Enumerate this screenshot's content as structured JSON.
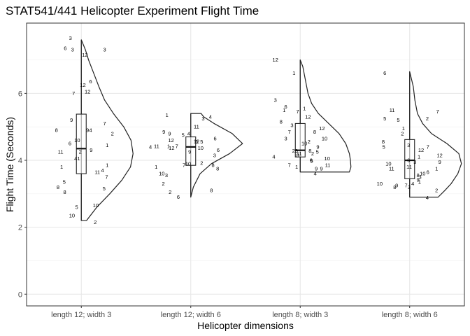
{
  "chart_data": {
    "type": "violin",
    "title": "STAT541/441 Helicopter Experiment Flight Time",
    "xlabel": "Helicopter dimensions",
    "ylabel": "Flight Time (Seconds)",
    "ylim": [
      -0.35,
      8.1
    ],
    "yticks": [
      0,
      2,
      4,
      6
    ],
    "grid": true,
    "categories": [
      "length 12; width 3",
      "length 12; width 6",
      "length 8; width 3",
      "length 8; width 6"
    ],
    "groups": [
      {
        "category": "length 12; width 3",
        "box": {
          "min": 2.2,
          "q1": 3.6,
          "median": 4.35,
          "q3": 5.38,
          "max": 7.6
        },
        "density": [
          [
            2.2,
            0.1
          ],
          [
            2.6,
            0.3
          ],
          [
            3.0,
            0.55
          ],
          [
            3.4,
            0.78
          ],
          [
            3.8,
            0.95
          ],
          [
            4.2,
            1.0
          ],
          [
            4.6,
            0.96
          ],
          [
            5.0,
            0.82
          ],
          [
            5.4,
            0.62
          ],
          [
            5.8,
            0.45
          ],
          [
            6.2,
            0.34
          ],
          [
            6.6,
            0.24
          ],
          [
            7.0,
            0.14
          ],
          [
            7.3,
            0.08
          ],
          [
            7.6,
            0.0
          ]
        ],
        "points": [
          {
            "label": "3",
            "dx": -0.21,
            "y": 7.65
          },
          {
            "label": "6",
            "dx": -0.31,
            "y": 7.35
          },
          {
            "label": "3",
            "dx": -0.17,
            "y": 7.3
          },
          {
            "label": "12",
            "dx": 0.07,
            "y": 7.15
          },
          {
            "label": "3",
            "dx": 0.45,
            "y": 7.3
          },
          {
            "label": "12",
            "dx": 0.03,
            "y": 6.25
          },
          {
            "label": "6",
            "dx": 0.18,
            "y": 6.35
          },
          {
            "label": "7",
            "dx": -0.15,
            "y": 6.0
          },
          {
            "label": "12",
            "dx": 0.12,
            "y": 6.05
          },
          {
            "label": "9",
            "dx": -0.19,
            "y": 5.2
          },
          {
            "label": "8",
            "dx": -0.48,
            "y": 4.9
          },
          {
            "label": "7",
            "dx": 0.45,
            "y": 5.1
          },
          {
            "label": "94",
            "dx": 0.15,
            "y": 4.9
          },
          {
            "label": "10",
            "dx": -0.08,
            "y": 4.6
          },
          {
            "label": "2",
            "dx": 0.6,
            "y": 4.8
          },
          {
            "label": "6",
            "dx": -0.22,
            "y": 4.5
          },
          {
            "label": "11",
            "dx": -0.4,
            "y": 4.25
          },
          {
            "label": "2",
            "dx": -0.02,
            "y": 4.25
          },
          {
            "label": "9",
            "dx": 0.19,
            "y": 4.3
          },
          {
            "label": "1",
            "dx": 0.5,
            "y": 4.45
          },
          {
            "label": "41",
            "dx": -0.08,
            "y": 4.05
          },
          {
            "label": "1",
            "dx": -0.38,
            "y": 3.8
          },
          {
            "label": "1",
            "dx": 0.5,
            "y": 3.85
          },
          {
            "label": "11",
            "dx": 0.31,
            "y": 3.65
          },
          {
            "label": "4",
            "dx": 0.41,
            "y": 3.7
          },
          {
            "label": "5",
            "dx": -0.33,
            "y": 3.35
          },
          {
            "label": "7",
            "dx": 0.49,
            "y": 3.5
          },
          {
            "label": "8",
            "dx": -0.45,
            "y": 3.2
          },
          {
            "label": "8",
            "dx": -0.32,
            "y": 3.05
          },
          {
            "label": "5",
            "dx": 0.44,
            "y": 3.15
          },
          {
            "label": "5",
            "dx": -0.09,
            "y": 2.6
          },
          {
            "label": "10",
            "dx": 0.28,
            "y": 2.65
          },
          {
            "label": "10",
            "dx": -0.18,
            "y": 2.35
          },
          {
            "label": "2",
            "dx": 0.27,
            "y": 2.15
          }
        ]
      },
      {
        "category": "length 12; width 6",
        "box": {
          "min": 2.9,
          "q1": 3.85,
          "median": 4.4,
          "q3": 4.7,
          "max": 5.4
        },
        "density": [
          [
            2.9,
            0.0
          ],
          [
            3.2,
            0.05
          ],
          [
            3.6,
            0.18
          ],
          [
            3.9,
            0.4
          ],
          [
            4.2,
            0.75
          ],
          [
            4.5,
            1.0
          ],
          [
            4.8,
            0.8
          ],
          [
            5.1,
            0.45
          ],
          [
            5.3,
            0.25
          ],
          [
            5.4,
            0.2
          ]
        ],
        "points": [
          {
            "label": "1",
            "dx": -0.46,
            "y": 5.35
          },
          {
            "label": "3",
            "dx": 0.24,
            "y": 5.25
          },
          {
            "label": "4",
            "dx": 0.38,
            "y": 5.3
          },
          {
            "label": "11",
            "dx": 0.11,
            "y": 5.0
          },
          {
            "label": "9",
            "dx": -0.52,
            "y": 4.85
          },
          {
            "label": "9",
            "dx": -0.41,
            "y": 4.8
          },
          {
            "label": "5",
            "dx": -0.15,
            "y": 4.75
          },
          {
            "label": "4",
            "dx": -0.04,
            "y": 4.8
          },
          {
            "label": "12",
            "dx": -0.38,
            "y": 4.6
          },
          {
            "label": "6",
            "dx": 0.47,
            "y": 4.65
          },
          {
            "label": "4",
            "dx": -0.78,
            "y": 4.4
          },
          {
            "label": "11",
            "dx": -0.66,
            "y": 4.42
          },
          {
            "label": "1",
            "dx": -0.43,
            "y": 4.42
          },
          {
            "label": "12",
            "dx": -0.37,
            "y": 4.37
          },
          {
            "label": "7",
            "dx": -0.27,
            "y": 4.42
          },
          {
            "label": "5",
            "dx": 0.12,
            "y": 4.55
          },
          {
            "label": "12",
            "dx": 0.11,
            "y": 4.57
          },
          {
            "label": "5",
            "dx": 0.21,
            "y": 4.55
          },
          {
            "label": "10",
            "dx": 0.19,
            "y": 4.37
          },
          {
            "label": "9",
            "dx": -0.02,
            "y": 4.25
          },
          {
            "label": "6",
            "dx": 0.53,
            "y": 4.3
          },
          {
            "label": "3",
            "dx": 0.46,
            "y": 4.15
          },
          {
            "label": "7",
            "dx": -0.13,
            "y": 3.85
          },
          {
            "label": "10",
            "dx": -0.05,
            "y": 3.9
          },
          {
            "label": "8",
            "dx": 0.43,
            "y": 3.85
          },
          {
            "label": "8",
            "dx": 0.52,
            "y": 3.75
          },
          {
            "label": "1",
            "dx": -0.67,
            "y": 3.8
          },
          {
            "label": "10",
            "dx": -0.56,
            "y": 3.6
          },
          {
            "label": "3",
            "dx": -0.47,
            "y": 3.55
          },
          {
            "label": "2",
            "dx": 0.21,
            "y": 3.92
          },
          {
            "label": "2",
            "dx": -0.53,
            "y": 3.3
          },
          {
            "label": "2",
            "dx": -0.4,
            "y": 3.05
          },
          {
            "label": "6",
            "dx": -0.24,
            "y": 2.9
          },
          {
            "label": "8",
            "dx": 0.4,
            "y": 3.1
          }
        ]
      },
      {
        "category": "length 8; width 3",
        "box": {
          "min": 3.65,
          "q1": 4.1,
          "median": 4.3,
          "q3": 5.1,
          "max": 7.0
        },
        "density": [
          [
            3.65,
            0.95
          ],
          [
            3.8,
            0.98
          ],
          [
            4.0,
            0.97
          ],
          [
            4.2,
            0.95
          ],
          [
            4.5,
            0.88
          ],
          [
            4.8,
            0.75
          ],
          [
            5.1,
            0.55
          ],
          [
            5.4,
            0.35
          ],
          [
            5.7,
            0.22
          ],
          [
            6.0,
            0.15
          ],
          [
            6.4,
            0.1
          ],
          [
            6.8,
            0.05
          ],
          [
            7.0,
            0.0
          ]
        ],
        "points": [
          {
            "label": "12",
            "dx": -0.48,
            "y": 7.0
          },
          {
            "label": "1",
            "dx": -0.12,
            "y": 6.6
          },
          {
            "label": "3",
            "dx": -0.48,
            "y": 5.8
          },
          {
            "label": "1",
            "dx": -0.31,
            "y": 5.5
          },
          {
            "label": "6",
            "dx": -0.28,
            "y": 5.6
          },
          {
            "label": "7",
            "dx": -0.05,
            "y": 5.45
          },
          {
            "label": "1",
            "dx": 0.08,
            "y": 5.55
          },
          {
            "label": "12",
            "dx": 0.15,
            "y": 5.3
          },
          {
            "label": "8",
            "dx": -0.37,
            "y": 5.15
          },
          {
            "label": "3",
            "dx": -0.16,
            "y": 5.05
          },
          {
            "label": "12",
            "dx": 0.42,
            "y": 4.95
          },
          {
            "label": "7",
            "dx": -0.21,
            "y": 4.85
          },
          {
            "label": "8",
            "dx": 0.28,
            "y": 4.85
          },
          {
            "label": "3",
            "dx": -0.28,
            "y": 4.65
          },
          {
            "label": "10",
            "dx": 0.47,
            "y": 4.65
          },
          {
            "label": "10",
            "dx": 0.08,
            "y": 4.5
          },
          {
            "label": "2",
            "dx": 0.17,
            "y": 4.55
          },
          {
            "label": "5",
            "dx": 0.33,
            "y": 4.25
          },
          {
            "label": "9",
            "dx": 0.34,
            "y": 4.4
          },
          {
            "label": "29",
            "dx": -0.1,
            "y": 4.28
          },
          {
            "label": "11",
            "dx": -0.02,
            "y": 4.2
          },
          {
            "label": "8",
            "dx": 0.19,
            "y": 4.28
          },
          {
            "label": "8",
            "dx": -0.05,
            "y": 4.15
          },
          {
            "label": "2",
            "dx": 0.24,
            "y": 4.2
          },
          {
            "label": "4",
            "dx": -0.51,
            "y": 4.1
          },
          {
            "label": "6",
            "dx": 0.21,
            "y": 4.0
          },
          {
            "label": "5",
            "dx": 0.22,
            "y": 3.98
          },
          {
            "label": "10",
            "dx": 0.52,
            "y": 4.05
          },
          {
            "label": "7",
            "dx": -0.21,
            "y": 3.85
          },
          {
            "label": "11",
            "dx": 0.53,
            "y": 3.85
          },
          {
            "label": "1",
            "dx": -0.07,
            "y": 3.8
          },
          {
            "label": "9",
            "dx": 0.31,
            "y": 3.75
          },
          {
            "label": "9",
            "dx": 0.41,
            "y": 3.75
          },
          {
            "label": "4",
            "dx": 0.29,
            "y": 3.6
          }
        ]
      },
      {
        "category": "length 8; width 6",
        "box": {
          "min": 2.9,
          "q1": 3.45,
          "median": 4.0,
          "q3": 4.62,
          "max": 6.65
        },
        "density": [
          [
            2.9,
            0.55
          ],
          [
            3.1,
            0.68
          ],
          [
            3.3,
            0.8
          ],
          [
            3.6,
            0.93
          ],
          [
            3.9,
            1.0
          ],
          [
            4.2,
            0.95
          ],
          [
            4.5,
            0.72
          ],
          [
            4.8,
            0.42
          ],
          [
            5.1,
            0.25
          ],
          [
            5.4,
            0.15
          ],
          [
            5.8,
            0.1
          ],
          [
            6.2,
            0.07
          ],
          [
            6.65,
            0.0
          ]
        ],
        "points": [
          {
            "label": "6",
            "dx": -0.48,
            "y": 6.6
          },
          {
            "label": "11",
            "dx": -0.34,
            "y": 5.5
          },
          {
            "label": "5",
            "dx": -0.48,
            "y": 5.25
          },
          {
            "label": "5",
            "dx": -0.22,
            "y": 5.2
          },
          {
            "label": "7",
            "dx": 0.54,
            "y": 5.45
          },
          {
            "label": "2",
            "dx": 0.34,
            "y": 5.25
          },
          {
            "label": "1",
            "dx": -0.12,
            "y": 4.95
          },
          {
            "label": "2",
            "dx": -0.14,
            "y": 4.8
          },
          {
            "label": "8",
            "dx": -0.51,
            "y": 4.55
          },
          {
            "label": "5",
            "dx": -0.5,
            "y": 4.4
          },
          {
            "label": "3",
            "dx": -0.02,
            "y": 4.45
          },
          {
            "label": "7",
            "dx": 0.35,
            "y": 4.4
          },
          {
            "label": "12",
            "dx": 0.22,
            "y": 4.3
          },
          {
            "label": "12",
            "dx": 0.58,
            "y": 4.15
          },
          {
            "label": "9",
            "dx": 0.58,
            "y": 3.95
          },
          {
            "label": "10",
            "dx": -0.41,
            "y": 3.9
          },
          {
            "label": "1",
            "dx": 0.18,
            "y": 4.1
          },
          {
            "label": "6",
            "dx": -0.02,
            "y": 4.0
          },
          {
            "label": "3",
            "dx": 0.1,
            "y": 3.95
          },
          {
            "label": "11",
            "dx": -0.01,
            "y": 3.8
          },
          {
            "label": "11",
            "dx": -0.35,
            "y": 3.75
          },
          {
            "label": "1",
            "dx": 0.52,
            "y": 3.75
          },
          {
            "label": "6",
            "dx": 0.35,
            "y": 3.65
          },
          {
            "label": "10",
            "dx": 0.25,
            "y": 3.6
          },
          {
            "label": "8",
            "dx": 0.16,
            "y": 3.55
          },
          {
            "label": "3",
            "dx": 0.2,
            "y": 3.5
          },
          {
            "label": "9",
            "dx": 0.16,
            "y": 3.42
          },
          {
            "label": "1",
            "dx": 0.19,
            "y": 3.35
          },
          {
            "label": "4",
            "dx": 0.06,
            "y": 3.3
          },
          {
            "label": "10",
            "dx": -0.58,
            "y": 3.3
          },
          {
            "label": "8",
            "dx": -0.29,
            "y": 3.2
          },
          {
            "label": "9",
            "dx": -0.25,
            "y": 3.25
          },
          {
            "label": "7",
            "dx": -0.07,
            "y": 3.25
          },
          {
            "label": "3",
            "dx": -0.01,
            "y": 3.2
          },
          {
            "label": "2",
            "dx": 0.52,
            "y": 3.1
          },
          {
            "label": "4",
            "dx": 0.34,
            "y": 2.88
          }
        ]
      }
    ]
  }
}
